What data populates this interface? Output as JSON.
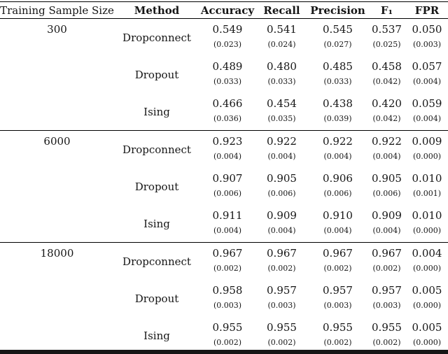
{
  "page": {
    "background": "#ffffff",
    "text_color": "#161616",
    "rule_color": "#000000"
  },
  "table": {
    "columns": [
      "Training Sample Size",
      "Method",
      "Accuracy",
      "Recall",
      "Precision",
      "F₁",
      "FPR"
    ],
    "groups": [
      {
        "sample_size": "300",
        "rows": [
          {
            "method": "Dropconnect",
            "values": [
              "0.549",
              "0.541",
              "0.545",
              "0.537",
              "0.050"
            ],
            "stds": [
              "(0.023)",
              "(0.024)",
              "(0.027)",
              "(0.025)",
              "(0.003)"
            ]
          },
          {
            "method": "Dropout",
            "values": [
              "0.489",
              "0.480",
              "0.485",
              "0.458",
              "0.057"
            ],
            "stds": [
              "(0.033)",
              "(0.033)",
              "(0.033)",
              "(0.042)",
              "(0.004)"
            ]
          },
          {
            "method": "Ising",
            "values": [
              "0.466",
              "0.454",
              "0.438",
              "0.420",
              "0.059"
            ],
            "stds": [
              "(0.036)",
              "(0.035)",
              "(0.039)",
              "(0.042)",
              "(0.004)"
            ]
          }
        ]
      },
      {
        "sample_size": "6000",
        "rows": [
          {
            "method": "Dropconnect",
            "values": [
              "0.923",
              "0.922",
              "0.922",
              "0.922",
              "0.009"
            ],
            "stds": [
              "(0.004)",
              "(0.004)",
              "(0.004)",
              "(0.004)",
              "(0.000)"
            ]
          },
          {
            "method": "Dropout",
            "values": [
              "0.907",
              "0.905",
              "0.906",
              "0.905",
              "0.010"
            ],
            "stds": [
              "(0.006)",
              "(0.006)",
              "(0.006)",
              "(0.006)",
              "(0.001)"
            ]
          },
          {
            "method": "Ising",
            "values": [
              "0.911",
              "0.909",
              "0.910",
              "0.909",
              "0.010"
            ],
            "stds": [
              "(0.004)",
              "(0.004)",
              "(0.004)",
              "(0.004)",
              "(0.000)"
            ]
          }
        ]
      },
      {
        "sample_size": "18000",
        "rows": [
          {
            "method": "Dropconnect",
            "values": [
              "0.967",
              "0.967",
              "0.967",
              "0.967",
              "0.004"
            ],
            "stds": [
              "(0.002)",
              "(0.002)",
              "(0.002)",
              "(0.002)",
              "(0.000)"
            ]
          },
          {
            "method": "Dropout",
            "values": [
              "0.958",
              "0.957",
              "0.957",
              "0.957",
              "0.005"
            ],
            "stds": [
              "(0.003)",
              "(0.003)",
              "(0.003)",
              "(0.003)",
              "(0.000)"
            ]
          },
          {
            "method": "Ising",
            "values": [
              "0.955",
              "0.955",
              "0.955",
              "0.955",
              "0.005"
            ],
            "stds": [
              "(0.002)",
              "(0.002)",
              "(0.002)",
              "(0.002)",
              "(0.000)"
            ]
          }
        ]
      }
    ]
  }
}
